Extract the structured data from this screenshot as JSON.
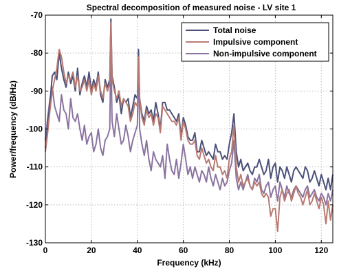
{
  "chart_data": {
    "type": "line",
    "title": "Spectral decomposition of measured noise - LV site 1",
    "xlabel": "Frequency (kHz)",
    "ylabel": "Power/frequency (dB/Hz)",
    "xlim": [
      0,
      125
    ],
    "ylim": [
      -130,
      -70
    ],
    "xticks": [
      0,
      20,
      40,
      60,
      80,
      100,
      120
    ],
    "yticks": [
      -130,
      -120,
      -110,
      -100,
      -90,
      -80,
      -70
    ],
    "grid": true,
    "legend_position": "top-right",
    "series": [
      {
        "name": "Total noise",
        "color": "#4a5078",
        "x": [
          0,
          1,
          2,
          3,
          4,
          5,
          6,
          7,
          8,
          9,
          10,
          11,
          12,
          13,
          14,
          15,
          16,
          17,
          18,
          19,
          20,
          21,
          22,
          23,
          24,
          25,
          26,
          27,
          28,
          28.5,
          29,
          30,
          31,
          32,
          33,
          34,
          35,
          36,
          37,
          38,
          39,
          40,
          40.5,
          41,
          42,
          43,
          44,
          45,
          46,
          47,
          48,
          49,
          50,
          51,
          52,
          53,
          54,
          55,
          56,
          57,
          58,
          59,
          60,
          61,
          62,
          63,
          64,
          65,
          66,
          67,
          68,
          69,
          70,
          71,
          72,
          73,
          74,
          75,
          76,
          77,
          78,
          79,
          80,
          81,
          82,
          83,
          84,
          85,
          86,
          87,
          88,
          89,
          90,
          91,
          92,
          93,
          94,
          95,
          96,
          97,
          98,
          99,
          100,
          101,
          102,
          103,
          104,
          105,
          106,
          107,
          108,
          109,
          110,
          111,
          112,
          113,
          114,
          115,
          116,
          117,
          118,
          119,
          120,
          121,
          122,
          123,
          124,
          125
        ],
        "y": [
          -105,
          -99,
          -93,
          -86,
          -85,
          -87,
          -80,
          -84,
          -87,
          -89,
          -85,
          -88,
          -86,
          -90,
          -84,
          -91,
          -88,
          -86,
          -89,
          -85,
          -90,
          -87,
          -89,
          -85,
          -91,
          -93,
          -87,
          -89,
          -87,
          -71,
          -86,
          -89,
          -93,
          -91,
          -96,
          -92,
          -93,
          -92,
          -97,
          -94,
          -91,
          -92,
          -79,
          -92,
          -96,
          -98,
          -94,
          -96,
          -95,
          -98,
          -93,
          -96,
          -100,
          -93,
          -93,
          -95,
          -95,
          -96,
          -97,
          -98,
          -96,
          -102,
          -97,
          -99,
          -102,
          -103,
          -103,
          -101,
          -106,
          -106,
          -103,
          -105,
          -107,
          -106,
          -107,
          -108,
          -104,
          -106,
          -106,
          -108,
          -107,
          -108,
          -104,
          -101,
          -96,
          -106,
          -110,
          -108,
          -111,
          -110,
          -109,
          -111,
          -112,
          -110,
          -110,
          -108,
          -110,
          -112,
          -111,
          -108,
          -113,
          -110,
          -109,
          -114,
          -110,
          -111,
          -113,
          -110,
          -112,
          -114,
          -111,
          -110,
          -111,
          -112,
          -113,
          -110,
          -111,
          -114,
          -113,
          -111,
          -113,
          -115,
          -112,
          -114,
          -116,
          -113,
          -116,
          -112
        ]
      },
      {
        "name": "Impulsive component",
        "color": "#b87a72",
        "x": [
          0,
          1,
          2,
          3,
          4,
          5,
          6,
          7,
          8,
          9,
          10,
          11,
          12,
          13,
          14,
          15,
          16,
          17,
          18,
          19,
          20,
          21,
          22,
          23,
          24,
          25,
          26,
          27,
          28,
          28.5,
          29,
          30,
          31,
          32,
          33,
          34,
          35,
          36,
          37,
          38,
          39,
          40,
          40.5,
          41,
          42,
          43,
          44,
          45,
          46,
          47,
          48,
          49,
          50,
          51,
          52,
          53,
          54,
          55,
          56,
          57,
          58,
          59,
          60,
          61,
          62,
          63,
          64,
          65,
          66,
          67,
          68,
          69,
          70,
          71,
          72,
          73,
          74,
          75,
          76,
          77,
          78,
          79,
          80,
          81,
          82,
          83,
          84,
          85,
          86,
          87,
          88,
          89,
          90,
          91,
          92,
          93,
          94,
          95,
          96,
          97,
          98,
          99,
          100,
          101,
          102,
          103,
          104,
          105,
          106,
          107,
          108,
          109,
          110,
          111,
          112,
          113,
          114,
          115,
          116,
          117,
          118,
          119,
          120,
          121,
          122,
          123,
          124,
          125
        ],
        "y": [
          -106,
          -101,
          -95,
          -90,
          -87,
          -84,
          -79,
          -81,
          -85,
          -88,
          -86,
          -87,
          -85,
          -89,
          -86,
          -90,
          -89,
          -87,
          -90,
          -87,
          -91,
          -88,
          -90,
          -86,
          -90,
          -92,
          -88,
          -90,
          -88,
          -72,
          -87,
          -90,
          -92,
          -90,
          -94,
          -92,
          -93,
          -94,
          -98,
          -96,
          -93,
          -94,
          -81,
          -92,
          -97,
          -99,
          -95,
          -97,
          -96,
          -99,
          -96,
          -97,
          -101,
          -94,
          -95,
          -96,
          -97,
          -98,
          -98,
          -99,
          -97,
          -103,
          -98,
          -100,
          -103,
          -104,
          -104,
          -103,
          -107,
          -108,
          -105,
          -107,
          -109,
          -108,
          -110,
          -111,
          -107,
          -110,
          -110,
          -112,
          -111,
          -113,
          -108,
          -106,
          -99,
          -110,
          -114,
          -112,
          -115,
          -114,
          -113,
          -115,
          -116,
          -114,
          -115,
          -114,
          -117,
          -118,
          -117,
          -118,
          -123,
          -121,
          -121,
          -127,
          -118,
          -116,
          -119,
          -117,
          -116,
          -119,
          -117,
          -115,
          -117,
          -118,
          -120,
          -118,
          -116,
          -120,
          -119,
          -117,
          -119,
          -121,
          -118,
          -120,
          -125,
          -119,
          -124,
          -120
        ]
      },
      {
        "name": "Non-impulsive component",
        "color": "#8a73a0",
        "x": [
          0,
          1,
          2,
          3,
          4,
          5,
          6,
          7,
          8,
          9,
          10,
          11,
          12,
          13,
          14,
          15,
          16,
          17,
          18,
          19,
          20,
          21,
          22,
          23,
          24,
          25,
          26,
          27,
          28,
          28.5,
          29,
          30,
          31,
          32,
          33,
          34,
          35,
          36,
          37,
          38,
          39,
          40,
          40.5,
          41,
          42,
          43,
          44,
          45,
          46,
          47,
          48,
          49,
          50,
          51,
          52,
          53,
          54,
          55,
          56,
          57,
          58,
          59,
          60,
          61,
          62,
          63,
          64,
          65,
          66,
          67,
          68,
          69,
          70,
          71,
          72,
          73,
          74,
          75,
          76,
          77,
          78,
          79,
          80,
          81,
          82,
          83,
          84,
          85,
          86,
          87,
          88,
          89,
          90,
          91,
          92,
          93,
          94,
          95,
          96,
          97,
          98,
          99,
          100,
          101,
          102,
          103,
          104,
          105,
          106,
          107,
          108,
          109,
          110,
          111,
          112,
          113,
          114,
          115,
          116,
          117,
          118,
          119,
          120,
          121,
          122,
          123,
          124,
          125
        ],
        "y": [
          -103,
          -97,
          -92,
          -89,
          -94,
          -96,
          -98,
          -91,
          -95,
          -96,
          -100,
          -92,
          -97,
          -98,
          -96,
          -100,
          -103,
          -99,
          -104,
          -102,
          -101,
          -106,
          -104,
          -100,
          -105,
          -107,
          -103,
          -102,
          -100,
          -79,
          -98,
          -102,
          -96,
          -100,
          -104,
          -103,
          -99,
          -102,
          -106,
          -103,
          -101,
          -99,
          -81,
          -100,
          -104,
          -107,
          -103,
          -108,
          -111,
          -106,
          -108,
          -109,
          -110,
          -107,
          -113,
          -104,
          -108,
          -111,
          -112,
          -108,
          -113,
          -109,
          -104,
          -108,
          -112,
          -110,
          -113,
          -110,
          -112,
          -114,
          -111,
          -112,
          -114,
          -110,
          -113,
          -115,
          -112,
          -114,
          -116,
          -113,
          -115,
          -114,
          -111,
          -109,
          -103,
          -113,
          -116,
          -114,
          -116,
          -114,
          -112,
          -115,
          -116,
          -113,
          -114,
          -112,
          -116,
          -117,
          -115,
          -114,
          -118,
          -116,
          -115,
          -119,
          -114,
          -116,
          -118,
          -115,
          -117,
          -118,
          -116,
          -115,
          -116,
          -117,
          -118,
          -116,
          -115,
          -118,
          -117,
          -116,
          -118,
          -119,
          -117,
          -118,
          -120,
          -117,
          -119,
          -116
        ]
      }
    ]
  }
}
